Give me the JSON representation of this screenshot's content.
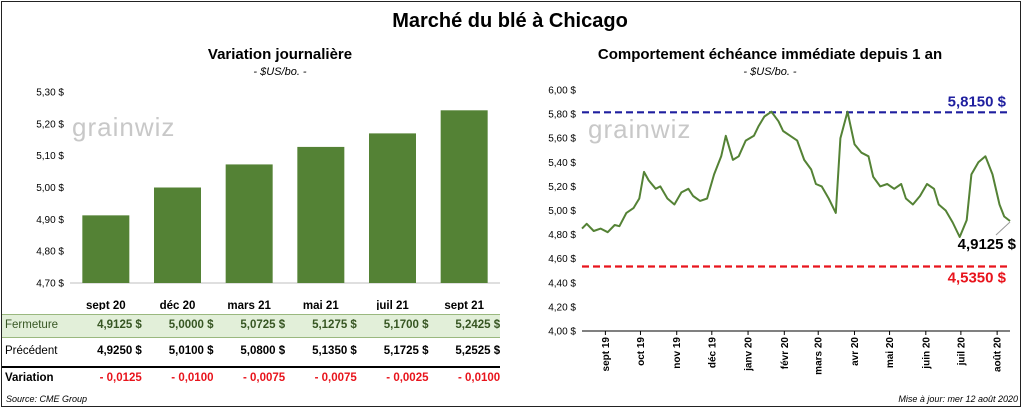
{
  "title": "Marché du blé à Chicago",
  "left_panel": {
    "title": "Variation  journalière",
    "subtitle": "- $US/bo. -",
    "watermark": "grainwiz"
  },
  "right_panel": {
    "title": "Comportement  échéance immédiate depuis 1 an",
    "subtitle": "- $US/bo. -",
    "watermark": "grainwiz"
  },
  "table": {
    "rows": [
      {
        "label": "Fermeture",
        "values": [
          "4,9125  $",
          "5,0000  $",
          "5,0725  $",
          "5,1275  $",
          "5,1700  $",
          "5,2425  $"
        ]
      },
      {
        "label": "Précédent",
        "values": [
          "4,9250  $",
          "5,0100  $",
          "5,0800  $",
          "5,1350  $",
          "5,1725  $",
          "5,2525  $"
        ]
      },
      {
        "label": "Variation",
        "values": [
          "- 0,0125",
          "- 0,0100",
          "- 0,0075",
          "- 0,0075",
          "- 0,0025",
          "- 0,0100"
        ]
      }
    ]
  },
  "footer": {
    "source": "Source: CME Group",
    "updated": "Mise à jour: mer 12 août 2020"
  },
  "colors": {
    "bar": "#548235",
    "line": "#548235",
    "high_line": "#1f1f9f",
    "low_line": "#e8141c",
    "negative": "#e8141c",
    "fermeture_row": "#e2efd9",
    "fermeture_text": "#375623"
  },
  "chart_data": [
    {
      "type": "bar",
      "categories": [
        "sept 20",
        "déc 20",
        "mars 21",
        "mai 21",
        "juil 21",
        "sept 21"
      ],
      "values": [
        4.9125,
        5.0,
        5.0725,
        5.1275,
        5.17,
        5.2425
      ],
      "ylim": [
        4.7,
        5.3
      ],
      "yticks": [
        4.7,
        4.8,
        4.9,
        5.0,
        5.1,
        5.2,
        5.3
      ],
      "ytick_labels": [
        "4,70 $",
        "4,80 $",
        "4,90 $",
        "5,00 $",
        "5,10 $",
        "5,20 $",
        "5,30 $"
      ],
      "grid": false
    },
    {
      "type": "line",
      "ylim": [
        4.0,
        6.0
      ],
      "yticks": [
        4.0,
        4.2,
        4.4,
        4.6,
        4.8,
        5.0,
        5.2,
        5.4,
        5.6,
        5.8,
        6.0
      ],
      "ytick_labels": [
        "4,00 $",
        "4,20 $",
        "4,40 $",
        "4,60 $",
        "4,80 $",
        "5,00 $",
        "5,20 $",
        "5,40 $",
        "5,60 $",
        "5,80 $",
        "6,00 $"
      ],
      "x_range": [
        "2019-08-12",
        "2020-08-12"
      ],
      "x_labels": [
        "sept 19",
        "oct 19",
        "nov 19",
        "déc 19",
        "janv 20",
        "févr 20",
        "mars 20",
        "avr 20",
        "mai 20",
        "juin 20",
        "juil 20",
        "août 20"
      ],
      "x_label_dates": [
        "2019-09-01",
        "2019-10-01",
        "2019-11-01",
        "2019-12-01",
        "2020-01-01",
        "2020-02-01",
        "2020-03-01",
        "2020-04-01",
        "2020-05-01",
        "2020-06-01",
        "2020-07-01",
        "2020-08-01"
      ],
      "series": [
        {
          "x": [
            "2019-08-12",
            "2019-08-16",
            "2019-08-22",
            "2019-08-28",
            "2019-09-03",
            "2019-09-09",
            "2019-09-13",
            "2019-09-19",
            "2019-09-25",
            "2019-09-30",
            "2019-10-04",
            "2019-10-08",
            "2019-10-14",
            "2019-10-18",
            "2019-10-24",
            "2019-10-30",
            "2019-11-05",
            "2019-11-11",
            "2019-11-15",
            "2019-11-21",
            "2019-11-27",
            "2019-12-03",
            "2019-12-09",
            "2019-12-13",
            "2019-12-19",
            "2019-12-24",
            "2019-12-30",
            "2020-01-06",
            "2020-01-10",
            "2020-01-15",
            "2020-01-21",
            "2020-01-27",
            "2020-01-31",
            "2020-02-06",
            "2020-02-12",
            "2020-02-18",
            "2020-02-24",
            "2020-02-28",
            "2020-03-04",
            "2020-03-10",
            "2020-03-16",
            "2020-03-20",
            "2020-03-26",
            "2020-04-01",
            "2020-04-07",
            "2020-04-13",
            "2020-04-17",
            "2020-04-23",
            "2020-04-29",
            "2020-05-05",
            "2020-05-11",
            "2020-05-15",
            "2020-05-21",
            "2020-05-27",
            "2020-06-02",
            "2020-06-08",
            "2020-06-12",
            "2020-06-18",
            "2020-06-24",
            "2020-06-30",
            "2020-07-06",
            "2020-07-10",
            "2020-07-16",
            "2020-07-22",
            "2020-07-28",
            "2020-08-03",
            "2020-08-07",
            "2020-08-12"
          ],
          "y": [
            4.85,
            4.89,
            4.83,
            4.85,
            4.82,
            4.88,
            4.87,
            4.98,
            5.02,
            5.1,
            5.32,
            5.25,
            5.18,
            5.2,
            5.1,
            5.05,
            5.15,
            5.18,
            5.12,
            5.08,
            5.1,
            5.3,
            5.45,
            5.62,
            5.42,
            5.45,
            5.58,
            5.62,
            5.7,
            5.78,
            5.82,
            5.74,
            5.66,
            5.62,
            5.58,
            5.42,
            5.34,
            5.22,
            5.2,
            5.1,
            4.98,
            5.6,
            5.82,
            5.55,
            5.48,
            5.45,
            5.28,
            5.2,
            5.22,
            5.18,
            5.22,
            5.1,
            5.05,
            5.12,
            5.22,
            5.18,
            5.05,
            5.0,
            4.9,
            4.78,
            4.92,
            5.3,
            5.4,
            5.45,
            5.3,
            5.05,
            4.95,
            4.9125
          ]
        }
      ],
      "reference_lines": [
        {
          "value": 5.815,
          "label": "5,8150  $"
        },
        {
          "value": 4.535,
          "label": "4,5350  $"
        }
      ],
      "last_value_label": "4,9125 $",
      "grid": false
    }
  ]
}
